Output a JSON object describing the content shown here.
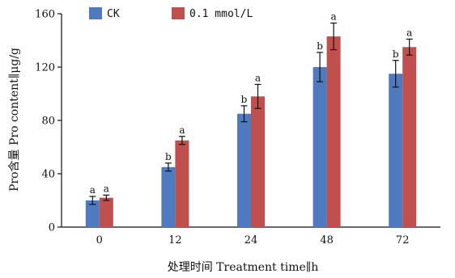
{
  "chart_data": {
    "type": "bar",
    "categories": [
      "0",
      "12",
      "24",
      "48",
      "72"
    ],
    "series": [
      {
        "name": "CK",
        "color": "#4f7ac0",
        "values": [
          20,
          45,
          85,
          120,
          115
        ],
        "errors": [
          3,
          3,
          6,
          11,
          10
        ],
        "significance": [
          "a",
          "b",
          "b",
          "b",
          "b"
        ]
      },
      {
        "name": "0.1 mmol/L",
        "color": "#c0504d",
        "values": [
          22,
          65,
          98,
          143,
          135
        ],
        "errors": [
          2,
          3,
          9,
          10,
          6
        ],
        "significance": [
          "a",
          "a",
          "a",
          "a",
          "a"
        ]
      }
    ],
    "xlabel": "处理时间 Treatment time∥h",
    "ylabel": "Pro含量 Pro content∥μg/g",
    "ylim": [
      0,
      160
    ],
    "yticks": [
      0,
      40,
      80,
      120,
      160
    ],
    "grid": false,
    "legend_position": "top-left"
  }
}
